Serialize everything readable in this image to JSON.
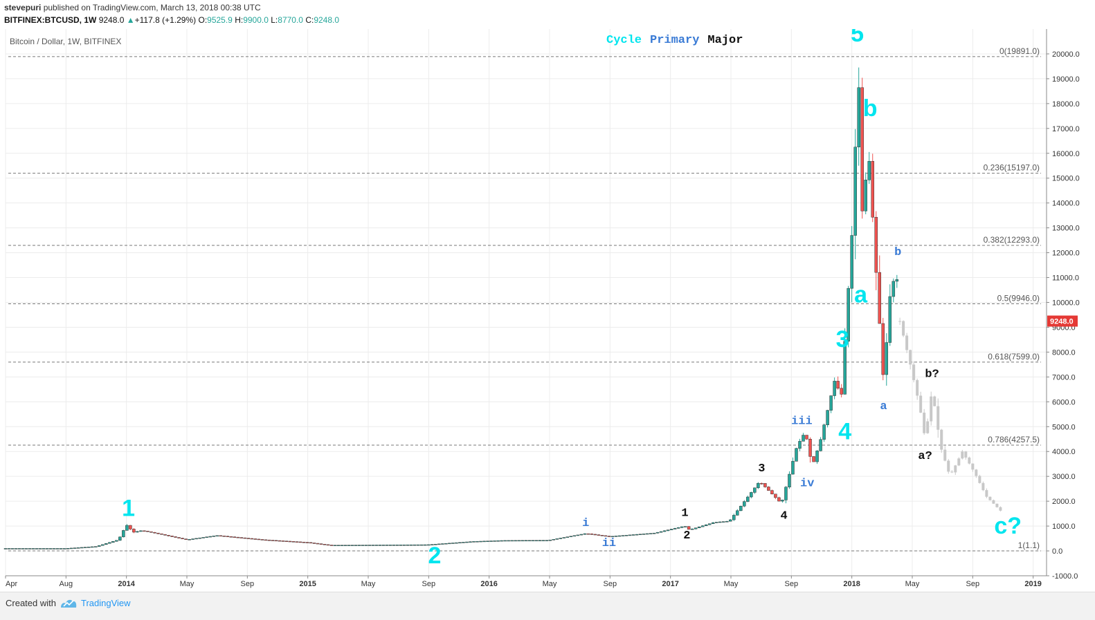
{
  "header": {
    "author": "stevepuri",
    "published_text": "published on TradingView.com, March 13, 2018 00:38 UTC",
    "symbol": "BITFINEX:BTCUSD, 1W",
    "last": "9248.0",
    "change": "+117.8 (+1.29%)",
    "open_label": "O:",
    "open": "9525.9",
    "high_label": "H:",
    "high": "9900.0",
    "low_label": "L:",
    "low": "8770.0",
    "close_label": "C:",
    "close": "9248.0"
  },
  "footer": {
    "created_with": "Created with",
    "brand": "TradingView"
  },
  "colors": {
    "up": "#26a69a",
    "down": "#ef5350",
    "projection": "#c8c8c8",
    "wave_cycle": "#00e5ee",
    "wave_primary": "#3a7bd5",
    "wave_major": "#111111",
    "price_tag": "#e53935"
  },
  "chart_data": {
    "type": "candlestick",
    "title": "Bitcoin / Dollar, 1W, BITFINEX",
    "legend": {
      "position": "top-center",
      "entries": [
        {
          "label": "Cycle",
          "color": "#00e5ee"
        },
        {
          "label": "Primary",
          "color": "#3a7bd5"
        },
        {
          "label": "Major",
          "color": "#111111"
        }
      ]
    },
    "x_ticks": [
      "Apr",
      "Aug",
      "2014",
      "May",
      "Sep",
      "2015",
      "May",
      "Sep",
      "2016",
      "May",
      "Sep",
      "2017",
      "May",
      "Sep",
      "2018",
      "May",
      "Sep",
      "2019"
    ],
    "x_range": [
      "2013-04",
      "2019-01"
    ],
    "y_ticks": [
      "-1000.0",
      "0.0",
      "1000.0",
      "2000.0",
      "3000.0",
      "4000.0",
      "5000.0",
      "6000.0",
      "7000.0",
      "8000.0",
      "9000.0",
      "10000.0",
      "11000.0",
      "12000.0",
      "13000.0",
      "14000.0",
      "15000.0",
      "16000.0",
      "17000.0",
      "18000.0",
      "19000.0",
      "20000.0"
    ],
    "y_range": [
      -1000,
      21000
    ],
    "grid": true,
    "current_price_label": "9248.0",
    "fib_levels": [
      {
        "label": "0(19891.0)",
        "value": 19891
      },
      {
        "label": "0.236(15197.0)",
        "value": 15197
      },
      {
        "label": "0.382(12293.0)",
        "value": 12293
      },
      {
        "label": "0.5(9946.0)",
        "value": 9946
      },
      {
        "label": "0.618(7599.0)",
        "value": 7599
      },
      {
        "label": "0.786(4257.5)",
        "value": 4257.5
      },
      {
        "label": "1(1.1)",
        "value": 1.1
      }
    ],
    "price_path": [
      [
        "2013-04",
        100
      ],
      [
        "2013-06",
        100
      ],
      [
        "2013-08",
        100
      ],
      [
        "2013-10",
        180
      ],
      [
        "2013-11-15",
        450
      ],
      [
        "2013-12-01",
        1050
      ],
      [
        "2013-12-15",
        750
      ],
      [
        "2014-01-01",
        820
      ],
      [
        "2014-02-01",
        700
      ],
      [
        "2014-04-01",
        450
      ],
      [
        "2014-06-01",
        620
      ],
      [
        "2014-09-01",
        450
      ],
      [
        "2014-12-01",
        340
      ],
      [
        "2015-01-15",
        230
      ],
      [
        "2015-05-01",
        240
      ],
      [
        "2015-08-01",
        250
      ],
      [
        "2015-11-01",
        380
      ],
      [
        "2016-01-01",
        420
      ],
      [
        "2016-04-01",
        430
      ],
      [
        "2016-06-15",
        700
      ],
      [
        "2016-08-01",
        580
      ],
      [
        "2016-11-01",
        720
      ],
      [
        "2017-01-01",
        1000
      ],
      [
        "2017-01-10",
        850
      ],
      [
        "2017-03-01",
        1150
      ],
      [
        "2017-04-01",
        1200
      ],
      [
        "2017-06-01",
        2800
      ],
      [
        "2017-07-15",
        1900
      ],
      [
        "2017-08-15",
        4200
      ],
      [
        "2017-09-01",
        4800
      ],
      [
        "2017-09-15",
        3400
      ],
      [
        "2017-10-01",
        4400
      ],
      [
        "2017-11-01",
        7000
      ],
      [
        "2017-11-12",
        6000
      ],
      [
        "2017-12-05",
        13000
      ],
      [
        "2017-12-17",
        19500
      ],
      [
        "2017-12-24",
        13500
      ],
      [
        "2018-01-07",
        16000
      ],
      [
        "2018-01-21",
        11500
      ],
      [
        "2018-02-06",
        6800
      ],
      [
        "2018-02-20",
        10500
      ],
      [
        "2018-03-04",
        11200
      ],
      [
        "2018-03-11",
        9248
      ]
    ],
    "projection_path": [
      [
        "2018-03-11",
        9248
      ],
      [
        "2018-04-01",
        7500
      ],
      [
        "2018-04-20",
        5800
      ],
      [
        "2018-05-01",
        4500
      ],
      [
        "2018-05-15",
        6500
      ],
      [
        "2018-06-01",
        4200
      ],
      [
        "2018-06-20",
        3000
      ],
      [
        "2018-07-15",
        4000
      ],
      [
        "2018-08-10",
        3100
      ],
      [
        "2018-09-01",
        2200
      ],
      [
        "2018-10-01",
        1600
      ]
    ],
    "annotations": [
      {
        "text": "1",
        "degree": "Cycle",
        "x": "2013-12-05",
        "y": 1400
      },
      {
        "text": "2",
        "degree": "Cycle",
        "x": "2015-08-15",
        "y": -500
      },
      {
        "text": "3",
        "degree": "Cycle",
        "x": "2017-11-15",
        "y": 8200
      },
      {
        "text": "4",
        "degree": "Cycle",
        "x": "2017-11-20",
        "y": 4500
      },
      {
        "text": "5",
        "degree": "Cycle",
        "x": "2017-12-15",
        "y": 20500
      },
      {
        "text": "a",
        "degree": "Cycle",
        "x": "2017-12-22",
        "y": 10000
      },
      {
        "text": "b",
        "degree": "Cycle",
        "x": "2018-01-10",
        "y": 17500
      },
      {
        "text": "c?",
        "degree": "Cycle",
        "x": "2018-10-15",
        "y": 700
      },
      {
        "text": "i",
        "degree": "Primary",
        "x": "2016-06-15",
        "y": 1000
      },
      {
        "text": "ii",
        "degree": "Primary",
        "x": "2016-08-01",
        "y": 200
      },
      {
        "text": "iii",
        "degree": "Primary",
        "x": "2017-08-25",
        "y": 5100
      },
      {
        "text": "iv",
        "degree": "Primary",
        "x": "2017-09-05",
        "y": 2600
      },
      {
        "text": "a",
        "degree": "Primary",
        "x": "2018-02-06",
        "y": 5700
      },
      {
        "text": "b",
        "degree": "Primary",
        "x": "2018-03-07",
        "y": 11900
      },
      {
        "text": "1",
        "degree": "Major",
        "x": "2017-01-01",
        "y": 1400
      },
      {
        "text": "2",
        "degree": "Major",
        "x": "2017-01-05",
        "y": 500
      },
      {
        "text": "3",
        "degree": "Major",
        "x": "2017-06-05",
        "y": 3200
      },
      {
        "text": "4",
        "degree": "Major",
        "x": "2017-07-20",
        "y": 1300
      },
      {
        "text": "b?",
        "degree": "Major",
        "x": "2018-05-15",
        "y": 7000
      },
      {
        "text": "a?",
        "degree": "Major",
        "x": "2018-05-01",
        "y": 3700
      }
    ]
  }
}
